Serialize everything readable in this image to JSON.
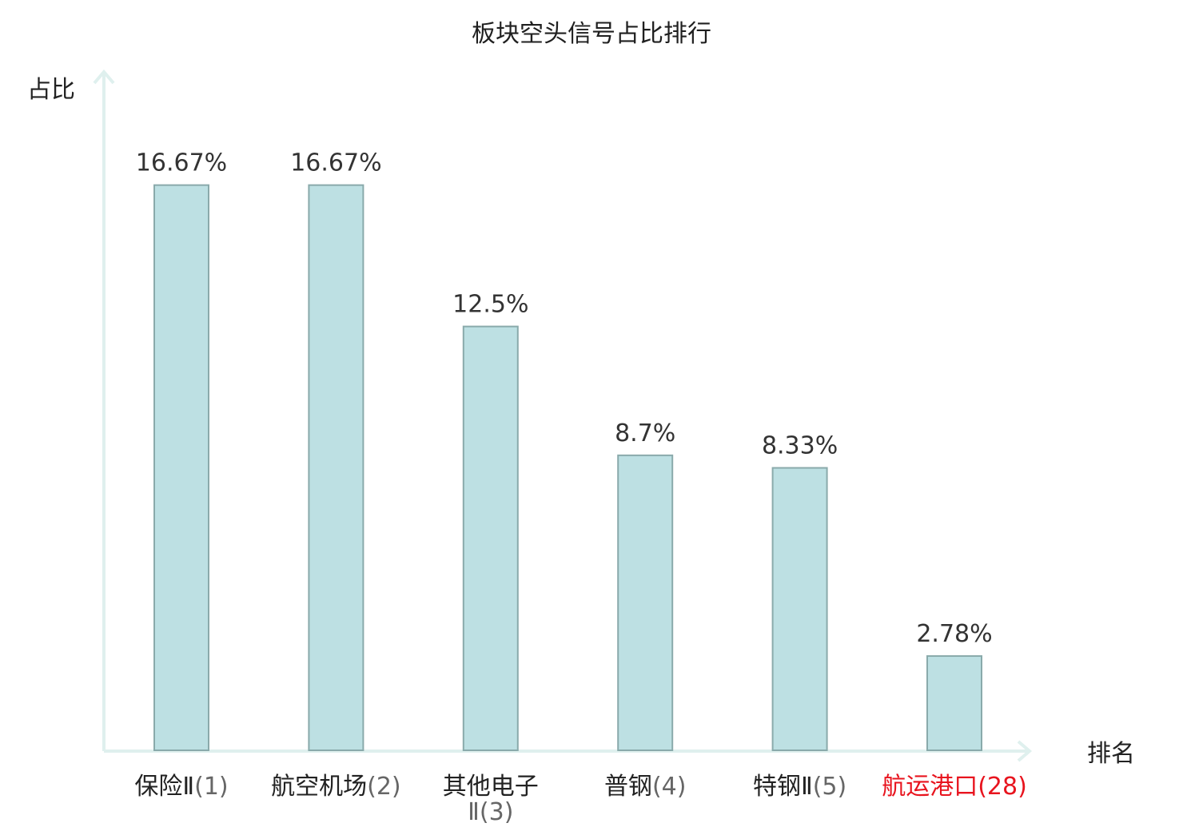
{
  "chart_data": {
    "type": "bar",
    "title": "板块空头信号占比排行",
    "ylabel": "占比",
    "xlabel": "排名",
    "ylim": [
      0,
      18.5
    ],
    "grid": false,
    "legend": "none",
    "categories": [
      {
        "name": "保险Ⅱ",
        "rank": "(1)",
        "value": 16.67,
        "label": "16.67%",
        "highlight": false
      },
      {
        "name": "航空机场",
        "rank": "(2)",
        "value": 16.67,
        "label": "16.67%",
        "highlight": false
      },
      {
        "name": "其他电子",
        "name_line2": "Ⅱ",
        "rank": "(3)",
        "value": 12.5,
        "label": "12.5%",
        "highlight": false
      },
      {
        "name": "普钢",
        "rank": "(4)",
        "value": 8.7,
        "label": "8.7%",
        "highlight": false
      },
      {
        "name": "特钢Ⅱ",
        "rank": "(5)",
        "value": 8.33,
        "label": "8.33%",
        "highlight": false
      },
      {
        "name": "航运港口",
        "rank": "(28)",
        "value": 2.78,
        "label": "2.78%",
        "highlight": true
      }
    ]
  },
  "colors": {
    "bar_fill": "#bde0e3",
    "bar_stroke": "#8aaaab",
    "axis": "#dff0ee",
    "highlight": "#e8141e"
  }
}
